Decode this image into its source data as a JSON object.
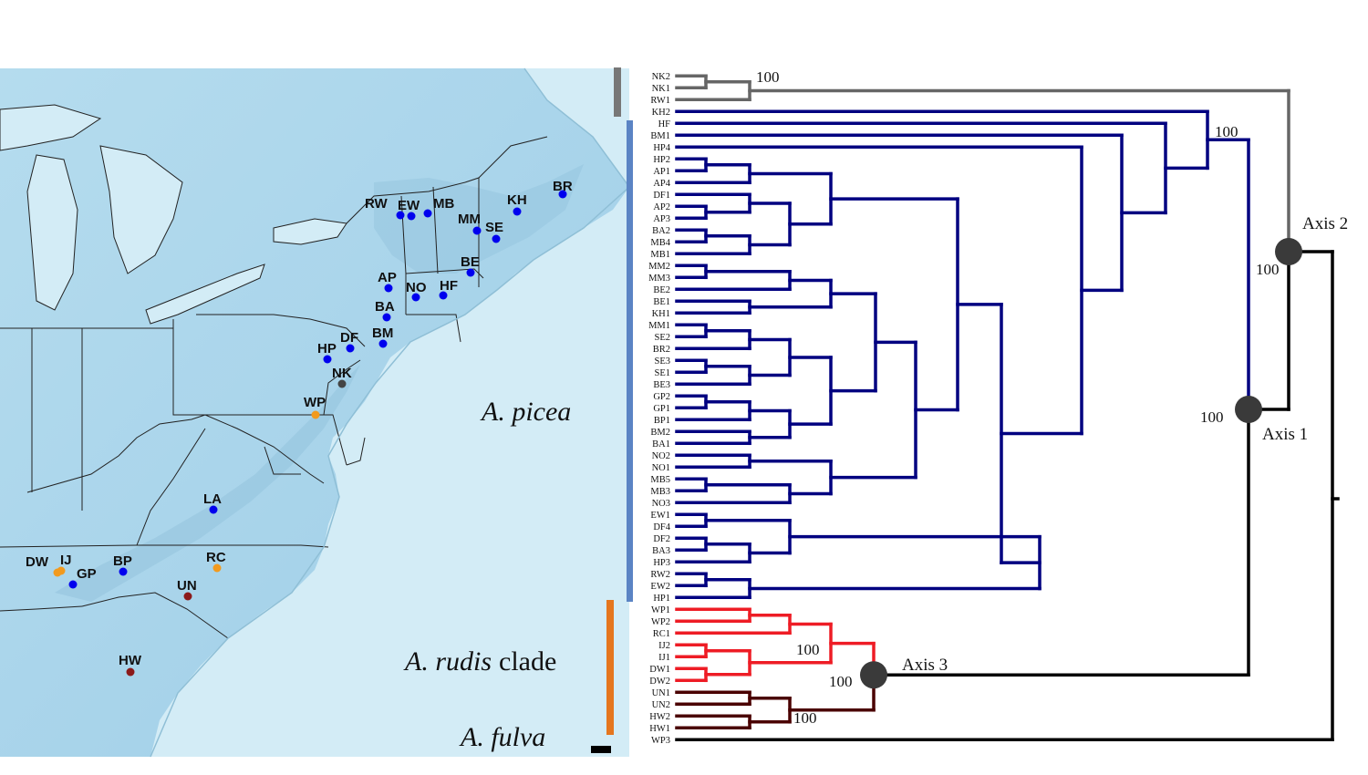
{
  "colors": {
    "water": "#cfe9f3",
    "land": "#aed6ea",
    "land_deep": "#93c4de",
    "border": "#222222",
    "picea": "#000080",
    "picea_bar": "#5b84c4",
    "outgroup": "#666666",
    "rudis": "#ee1c25",
    "fulva": "#4a0000",
    "rudis_bar": "#e5761e",
    "trunk": "#000000",
    "node": "#3a3a3a"
  },
  "map": {
    "sites": [
      {
        "label": "BR",
        "color": "#0000ee"
      },
      {
        "label": "KH",
        "color": "#0000ee"
      },
      {
        "label": "RW",
        "color": "#0000ee"
      },
      {
        "label": "EW",
        "color": "#0000ee"
      },
      {
        "label": "MB",
        "color": "#0000ee"
      },
      {
        "label": "MM",
        "color": "#0000ee"
      },
      {
        "label": "SE",
        "color": "#0000ee"
      },
      {
        "label": "BE",
        "color": "#0000ee"
      },
      {
        "label": "AP",
        "color": "#0000ee"
      },
      {
        "label": "NO",
        "color": "#0000ee"
      },
      {
        "label": "HF",
        "color": "#0000ee"
      },
      {
        "label": "BA",
        "color": "#0000ee"
      },
      {
        "label": "DF",
        "color": "#0000ee"
      },
      {
        "label": "BM",
        "color": "#0000ee"
      },
      {
        "label": "HP",
        "color": "#0000ee"
      },
      {
        "label": "NK",
        "color": "#444444"
      },
      {
        "label": "WP",
        "color": "#f29a1e"
      },
      {
        "label": "LA",
        "color": "#0000ee"
      },
      {
        "label": "DW",
        "color": "#f29a1e"
      },
      {
        "label": "IJ",
        "color": "#f29a1e"
      },
      {
        "label": "GP",
        "color": "#0000ee"
      },
      {
        "label": "BP",
        "color": "#0000ee"
      },
      {
        "label": "RC",
        "color": "#f29a1e"
      },
      {
        "label": "UN",
        "color": "#8b1a1a"
      },
      {
        "label": "HW",
        "color": "#8b1a1a"
      }
    ]
  },
  "clades": {
    "picea": "A. picea",
    "rudis": "A. rudis",
    "rudis_suffix": "clade",
    "fulva": "A. fulva"
  },
  "tree": {
    "leaves": [
      "NK2",
      "NK1",
      "RW1",
      "KH2",
      "HF",
      "BM1",
      "HP4",
      "HP2",
      "AP1",
      "AP4",
      "DF1",
      "AP2",
      "AP3",
      "BA2",
      "MB4",
      "MB1",
      "MM2",
      "MM3",
      "BE2",
      "BE1",
      "KH1",
      "MM1",
      "SE2",
      "BR2",
      "SE3",
      "SE1",
      "BE3",
      "GP2",
      "GP1",
      "BP1",
      "BM2",
      "BA1",
      "NO2",
      "NO1",
      "MB5",
      "MB3",
      "NO3",
      "EW1",
      "DF4",
      "DF2",
      "BA3",
      "HP3",
      "RW2",
      "EW2",
      "HP1",
      "WP1",
      "WP2",
      "RC1",
      "IJ2",
      "IJ1",
      "DW1",
      "DW2",
      "UN1",
      "UN2",
      "HW2",
      "HW1",
      "WP3"
    ],
    "support": [
      "100",
      "100",
      "100",
      "100",
      "100",
      "100",
      "100"
    ],
    "axes": [
      "Axis 1",
      "Axis 2",
      "Axis 3"
    ]
  }
}
